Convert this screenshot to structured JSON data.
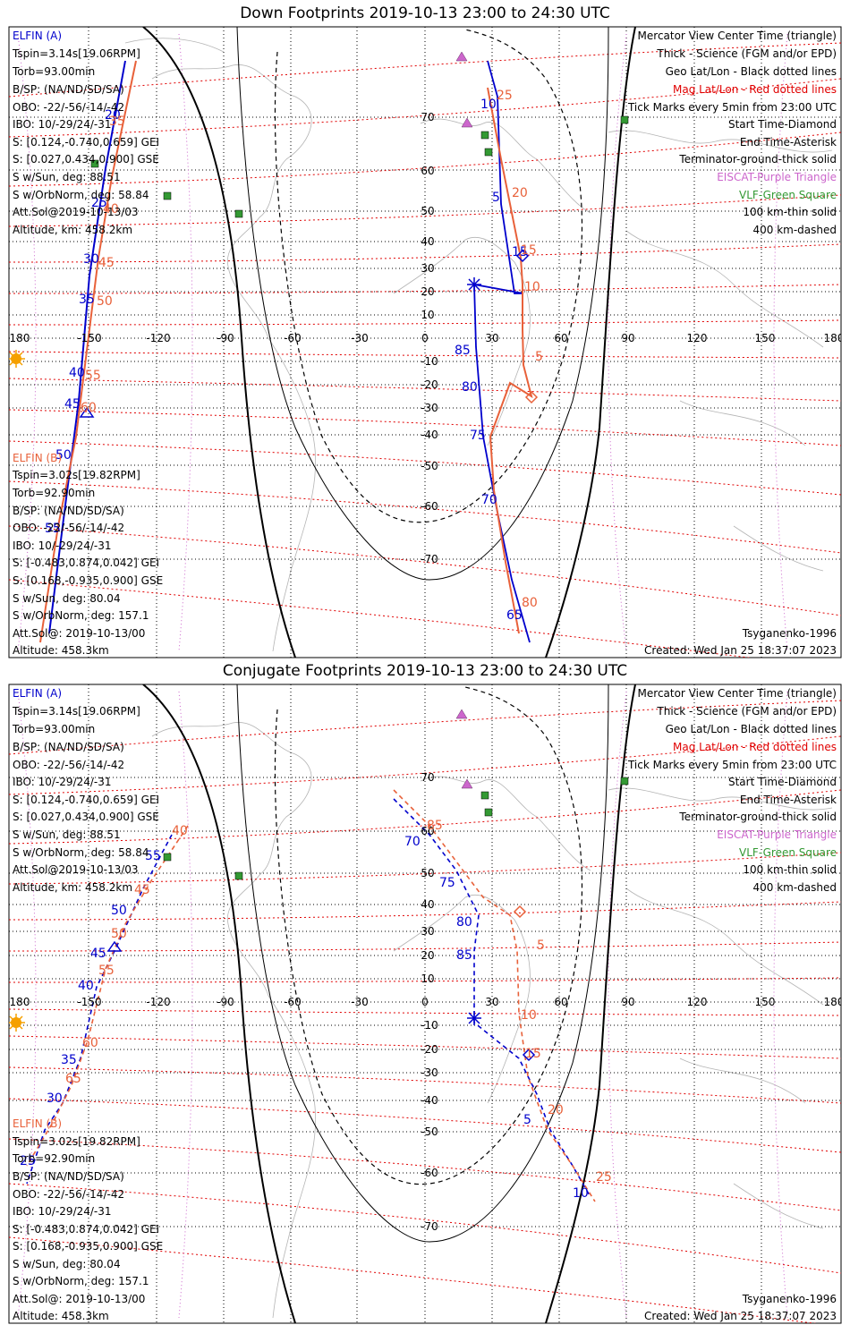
{
  "colors": {
    "elfin_a": "#0000cc",
    "elfin_b": "#e8613a",
    "mag_grid": "#e00000",
    "geo_grid": "#000000",
    "eiscat": "#cc66cc",
    "vlf": "#339933",
    "coast": "#b4b4b4",
    "terminator": "#000000"
  },
  "panels": [
    {
      "id": "down",
      "title": "Down Footprints 2019-10-13 23:00 to 24:30 UTC",
      "legend_left_a": [
        "ELFIN (A)",
        "Tspin=3.14s[19.06RPM]",
        "Torb=93.00min",
        "B/SP: (NA/ND/SD/SA)",
        "OBO: -22/-56/-14/-42",
        "IBO: 10/-29/24/-31",
        "S: [0.124,-0.740,0.659] GEI",
        "S: [0.027,0.434,0.900] GSE",
        "S w/Sun, deg: 88.51",
        "S w/OrbNorm, deg: 58.84",
        "Att.Sol@2019-10-13/03",
        "Altitude, km: 458.2km"
      ],
      "legend_left_b": [
        "ELFIN (B)",
        "Tspin=3.02s[19.82RPM]",
        "Torb=92.90min",
        "B/SP: (NA/ND/SD/SA)",
        "OBO: -22/-56/-14/-42",
        "IBO: 10/-29/24/-31",
        "S: [-0.483,0.874,0.042] GEI",
        "S: [0.168,-0.935,0.900] GSE",
        "S w/Sun, deg: 80.04",
        "S w/OrbNorm, deg: 157.1",
        "Att.Sol@: 2019-10-13/00",
        "Altitude: 458.3km"
      ],
      "legend_right": [
        "Mercator View Center Time (triangle)",
        "Thick - Science (FGM and/or EPD)",
        "Geo Lat/Lon - Black dotted lines",
        "Mag Lat/Lon - Red dotted lines",
        "Tick Marks every 5min from 23:00 UTC",
        "Start Time-Diamond",
        "End Time-Asterisk",
        "Terminator-ground-thick solid",
        "EISCAT-Purple Triangle",
        "VLF-Green Square",
        "100 km-thin solid",
        "400 km-dashed"
      ],
      "model": "Tsyganenko-1996",
      "created": "Created: Wed Jan 25 18:37:07 2023",
      "lon_ticks": [
        "180",
        "-150",
        "-120",
        "-90",
        "-60",
        "-30",
        "0",
        "30",
        "60",
        "90",
        "120",
        "150",
        "180"
      ],
      "lat_ticks": [
        "70",
        "60",
        "50",
        "40",
        "30",
        "20",
        "10",
        "-10",
        "-20",
        "-30",
        "-40",
        "-50",
        "-60",
        "-70"
      ],
      "track_a_labels": [
        "20",
        "25",
        "30",
        "35",
        "40",
        "45",
        "50",
        "55",
        "10",
        "5",
        "15",
        "85",
        "80",
        "75",
        "70",
        "65"
      ],
      "track_b_labels": [
        "35",
        "40",
        "45",
        "50",
        "55",
        "60",
        "25",
        "20",
        "15",
        "10",
        "5",
        "80"
      ]
    },
    {
      "id": "conjugate",
      "title": "Conjugate Footprints 2019-10-13 23:00 to 24:30 UTC",
      "legend_left_a": [
        "ELFIN (A)",
        "Tspin=3.14s[19.06RPM]",
        "Torb=93.00min",
        "B/SP: (NA/ND/SD/SA)",
        "OBO: -22/-56/-14/-42",
        "IBO: 10/-29/24/-31",
        "S: [0.124,-0.740,0.659] GEI",
        "S: [0.027,0.434,0.900] GSE",
        "S w/Sun, deg: 88.51",
        "S w/OrbNorm, deg: 58.84",
        "Att.Sol@2019-10-13/03",
        "Altitude, km: 458.2km"
      ],
      "legend_left_b": [
        "ELFIN (B)",
        "Tspin=3.02s[19.82RPM]",
        "Torb=92.90min",
        "B/SP: (NA/ND/SD/SA)",
        "OBO: -22/-56/-14/-42",
        "IBO: 10/-29/24/-31",
        "S: [-0.483,0.874,0.042] GEI",
        "S: [0.168,-0.935,0.900] GSE",
        "S w/Sun, deg: 80.04",
        "S w/OrbNorm, deg: 157.1",
        "Att.Sol@: 2019-10-13/00",
        "Altitude: 458.3km"
      ],
      "legend_right": [
        "Mercator View Center Time (triangle)",
        "Thick - Science (FGM and/or EPD)",
        "Geo Lat/Lon - Black dotted lines",
        "Mag Lat/Lon - Red dotted lines",
        "Tick Marks every 5min from 23:00 UTC",
        "Start Time-Diamond",
        "End Time-Asterisk",
        "Terminator-ground-thick solid",
        "EISCAT-Purple Triangle",
        "VLF-Green Square",
        "100 km-thin solid",
        "400 km-dashed"
      ],
      "model": "Tsyganenko-1996",
      "created": "Created: Wed Jan 25 18:37:07 2023",
      "lon_ticks": [
        "180",
        "-150",
        "-120",
        "-90",
        "-60",
        "-30",
        "0",
        "30",
        "60",
        "90",
        "120",
        "150",
        "180"
      ],
      "lat_ticks": [
        "70",
        "60",
        "50",
        "40",
        "30",
        "20",
        "10",
        "-10",
        "-20",
        "-30",
        "-40",
        "-50",
        "-60",
        "-70"
      ],
      "track_a_labels": [
        "55",
        "50",
        "45",
        "40",
        "35",
        "30",
        "25",
        "70",
        "75",
        "80",
        "85",
        "5",
        "10"
      ],
      "track_b_labels": [
        "40",
        "45",
        "50",
        "55",
        "60",
        "65",
        "85",
        "5",
        "10",
        "15",
        "20",
        "25"
      ]
    }
  ]
}
